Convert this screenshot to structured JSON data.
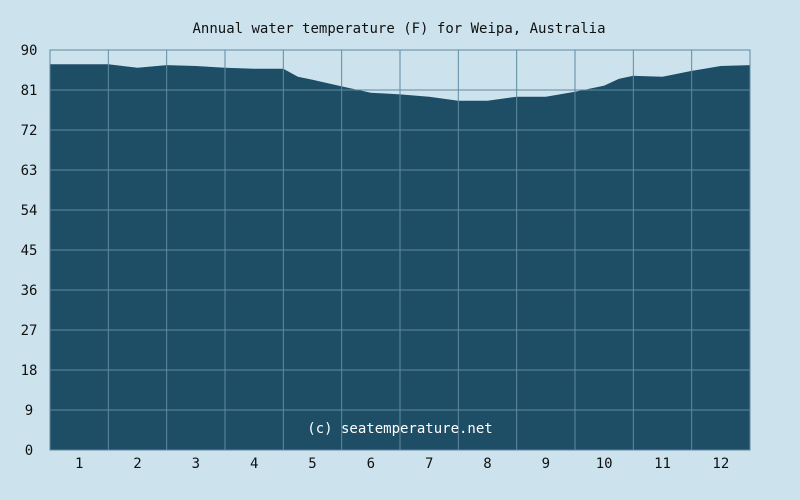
{
  "chart_data": {
    "type": "area",
    "title": "Annual water temperature (F) for Weipa, Australia",
    "xlabel": "",
    "ylabel": "",
    "ylim": [
      0,
      90
    ],
    "xlim": [
      0.5,
      12.5
    ],
    "yticks": [
      0,
      9,
      18,
      27,
      36,
      45,
      54,
      63,
      72,
      81,
      90
    ],
    "ytick_labels": [
      "0",
      "9",
      "18",
      "27",
      "36",
      "45",
      "54",
      "63",
      "72",
      "81",
      "90"
    ],
    "xticks": [
      1,
      2,
      3,
      4,
      5,
      6,
      7,
      8,
      9,
      10,
      11,
      12
    ],
    "xtick_labels": [
      "1",
      "2",
      "3",
      "4",
      "5",
      "6",
      "7",
      "8",
      "9",
      "10",
      "11",
      "12"
    ],
    "grid": true,
    "series": [
      {
        "x": [
          0.5,
          1.0,
          1.5,
          2.0,
          2.5,
          3.0,
          3.5,
          4.0,
          4.5,
          4.75,
          5.0,
          5.5,
          6.0,
          6.5,
          7.0,
          7.5,
          8.0,
          8.5,
          9.0,
          9.5,
          10.0,
          10.25,
          10.5,
          11.0,
          11.5,
          12.0,
          12.5
        ],
        "values": [
          86.8,
          86.8,
          86.8,
          86.0,
          86.6,
          86.4,
          86.0,
          85.8,
          85.8,
          84.0,
          83.3,
          81.8,
          80.4,
          80.0,
          79.5,
          78.6,
          78.6,
          79.5,
          79.5,
          80.6,
          82.0,
          83.5,
          84.2,
          84.0,
          85.3,
          86.4,
          86.6
        ],
        "color": "#1e4d66"
      }
    ],
    "watermark": "(c) seatemperature.net"
  },
  "colors": {
    "background": "#cce3ee",
    "plot_background": "#cce3ee",
    "area_fill": "#1e4d66",
    "grid": "#5f8aa0",
    "text": "#111111",
    "watermark": "#ffffff"
  }
}
